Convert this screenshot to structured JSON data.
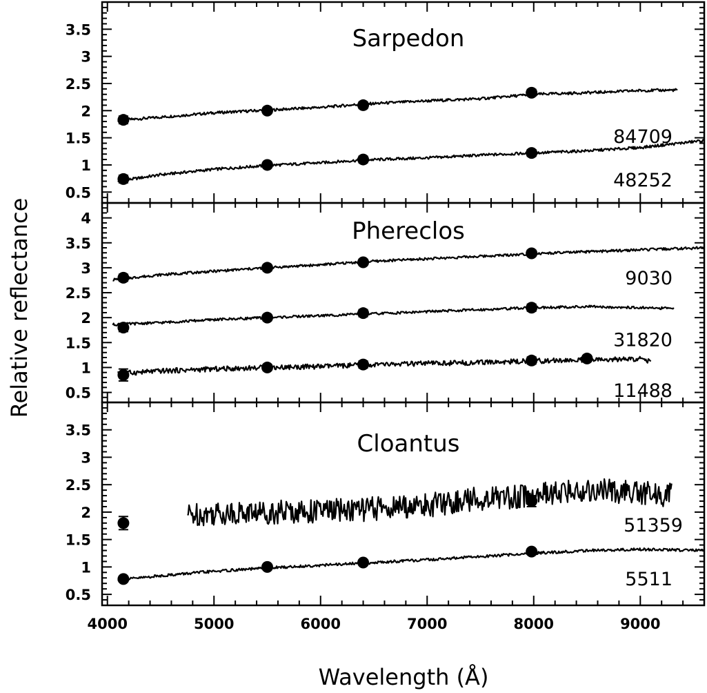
{
  "figure": {
    "ylabel": "Relative reflectance",
    "xlabel": "Wavelength (Å)"
  },
  "chart_data": [
    {
      "type": "line",
      "title": "Sarpedon",
      "xlim": [
        3950,
        9600
      ],
      "ylim": [
        0.3,
        4.0
      ],
      "xticks": [
        4000,
        5000,
        6000,
        7000,
        8000,
        9000
      ],
      "yticks": [
        0.5,
        1,
        1.5,
        2,
        2.5,
        3,
        3.5
      ],
      "ytick_labels": [
        "0.5",
        "1",
        "1.5",
        "2",
        "2.5",
        "3",
        "3.5"
      ],
      "series": [
        {
          "name": "84709",
          "x": [
            4100,
            4500,
            5000,
            5500,
            6000,
            6400,
            7000,
            7500,
            8000,
            8500,
            9000,
            9350
          ],
          "y": [
            1.82,
            1.88,
            1.96,
            2.01,
            2.06,
            2.12,
            2.18,
            2.22,
            2.3,
            2.33,
            2.37,
            2.38
          ],
          "points": [
            {
              "x": 4150,
              "y": 1.83,
              "err": 0.07
            },
            {
              "x": 5500,
              "y": 2.0,
              "err": 0.05
            },
            {
              "x": 6400,
              "y": 2.1,
              "err": 0.06
            },
            {
              "x": 7980,
              "y": 2.33,
              "err": 0.06
            }
          ]
        },
        {
          "name": "48252",
          "x": [
            4100,
            4500,
            5000,
            5500,
            6000,
            6400,
            7000,
            7500,
            8000,
            8500,
            9000,
            9600
          ],
          "y": [
            0.7,
            0.82,
            0.92,
            0.99,
            1.04,
            1.09,
            1.13,
            1.18,
            1.22,
            1.26,
            1.32,
            1.45
          ],
          "points": [
            {
              "x": 4150,
              "y": 0.74,
              "err": 0.07
            },
            {
              "x": 5500,
              "y": 1.0,
              "err": 0.05
            },
            {
              "x": 6400,
              "y": 1.1,
              "err": 0.06
            },
            {
              "x": 7980,
              "y": 1.22,
              "err": 0.06
            }
          ]
        }
      ]
    },
    {
      "type": "line",
      "title": "Phereclos",
      "xlim": [
        3950,
        9600
      ],
      "ylim": [
        0.3,
        4.3
      ],
      "xticks": [
        4000,
        5000,
        6000,
        7000,
        8000,
        9000
      ],
      "yticks": [
        0.5,
        1,
        1.5,
        2,
        2.5,
        3,
        3.5,
        4
      ],
      "ytick_labels": [
        "0.5",
        "1",
        "1.5",
        "2",
        "2.5",
        "3",
        "3.5",
        "4"
      ],
      "series": [
        {
          "name": "9030",
          "x": [
            4050,
            4500,
            5000,
            5500,
            6000,
            6400,
            7000,
            7500,
            8000,
            8500,
            9000,
            9600
          ],
          "y": [
            2.76,
            2.86,
            2.93,
            3.0,
            3.06,
            3.12,
            3.18,
            3.23,
            3.28,
            3.32,
            3.36,
            3.4
          ],
          "points": [
            {
              "x": 4150,
              "y": 2.8,
              "err": 0.07
            },
            {
              "x": 5500,
              "y": 3.0,
              "err": 0.06
            },
            {
              "x": 6400,
              "y": 3.11,
              "err": 0.06
            },
            {
              "x": 7980,
              "y": 3.29,
              "err": 0.06
            }
          ]
        },
        {
          "name": "31820",
          "x": [
            4050,
            4500,
            5000,
            5500,
            6000,
            6400,
            7000,
            7500,
            8000,
            8500,
            9000,
            9320
          ],
          "y": [
            1.86,
            1.9,
            1.96,
            2.0,
            2.04,
            2.07,
            2.12,
            2.16,
            2.2,
            2.22,
            2.2,
            2.18
          ],
          "points": [
            {
              "x": 4150,
              "y": 1.8,
              "err": 0.08
            },
            {
              "x": 5500,
              "y": 2.0,
              "err": 0.06
            },
            {
              "x": 6400,
              "y": 2.09,
              "err": 0.07
            },
            {
              "x": 7980,
              "y": 2.2,
              "err": 0.07
            }
          ]
        },
        {
          "name": "11488",
          "x": [
            4100,
            4500,
            5000,
            5500,
            6000,
            6400,
            7000,
            7500,
            8000,
            8500,
            9000,
            9100
          ],
          "y": [
            0.88,
            0.93,
            0.97,
            1.0,
            1.02,
            1.05,
            1.08,
            1.1,
            1.13,
            1.15,
            1.17,
            1.12
          ],
          "points": [
            {
              "x": 4150,
              "y": 0.85,
              "err": 0.12
            },
            {
              "x": 5500,
              "y": 1.0,
              "err": 0.06
            },
            {
              "x": 6400,
              "y": 1.06,
              "err": 0.07
            },
            {
              "x": 7980,
              "y": 1.14,
              "err": 0.07
            },
            {
              "x": 8500,
              "y": 1.18,
              "err": 0.06
            }
          ]
        }
      ]
    },
    {
      "type": "line",
      "title": "Cloantus",
      "xlim": [
        3950,
        9600
      ],
      "ylim": [
        0.3,
        4.0
      ],
      "xticks": [
        4000,
        5000,
        6000,
        7000,
        8000,
        9000
      ],
      "xtick_labels": [
        "4000",
        "5000",
        "6000",
        "7000",
        "8000",
        "9000"
      ],
      "yticks": [
        0.5,
        1,
        1.5,
        2,
        2.5,
        3,
        3.5
      ],
      "ytick_labels": [
        "0.5",
        "1",
        "1.5",
        "2",
        "2.5",
        "3",
        "3.5"
      ],
      "series": [
        {
          "name": "51359",
          "x": [
            4750,
            5000,
            5500,
            6000,
            6400,
            7000,
            7500,
            8000,
            8500,
            9000,
            9300
          ],
          "y": [
            1.95,
            1.98,
            2.0,
            2.02,
            2.05,
            2.12,
            2.25,
            2.3,
            2.4,
            2.35,
            2.3
          ],
          "points": [
            {
              "x": 4150,
              "y": 1.8,
              "err": 0.12
            },
            {
              "x": 7980,
              "y": 2.2,
              "err": 0.1
            }
          ]
        },
        {
          "name": "5511",
          "x": [
            4100,
            4500,
            5000,
            5500,
            6000,
            6400,
            7000,
            7500,
            8000,
            8500,
            9000,
            9600
          ],
          "y": [
            0.76,
            0.84,
            0.92,
            0.98,
            1.03,
            1.07,
            1.13,
            1.19,
            1.25,
            1.3,
            1.32,
            1.3
          ],
          "points": [
            {
              "x": 4150,
              "y": 0.78,
              "err": 0.05
            },
            {
              "x": 5500,
              "y": 1.0,
              "err": 0.05
            },
            {
              "x": 6400,
              "y": 1.08,
              "err": 0.05
            },
            {
              "x": 7980,
              "y": 1.28,
              "err": 0.05
            }
          ]
        }
      ]
    }
  ]
}
